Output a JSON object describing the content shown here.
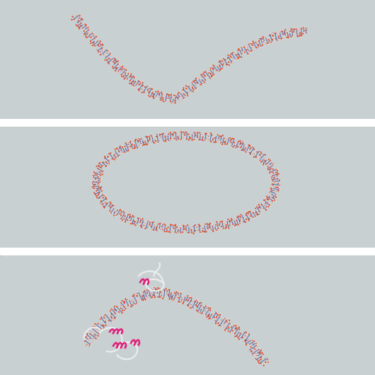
{
  "colors": {
    "background": "#c8d0d1",
    "separator": "#ffffff",
    "dna_backbone_oxygen": "#e4502a",
    "dna_base_blue": "#4a5fa6",
    "dna_base_purple": "#6a5a9e",
    "dna_light": "#e9e3e8",
    "protein_helix": "#e0207a",
    "protein_coil": "#eef0f0"
  },
  "panels": [
    {
      "id": "linear-dna",
      "subject": "linear-dna-duplex"
    },
    {
      "id": "circular-dna",
      "subject": "circular-dna-minicircle"
    },
    {
      "id": "protein-dna",
      "subject": "bent-dna-with-bound-proteins"
    }
  ]
}
